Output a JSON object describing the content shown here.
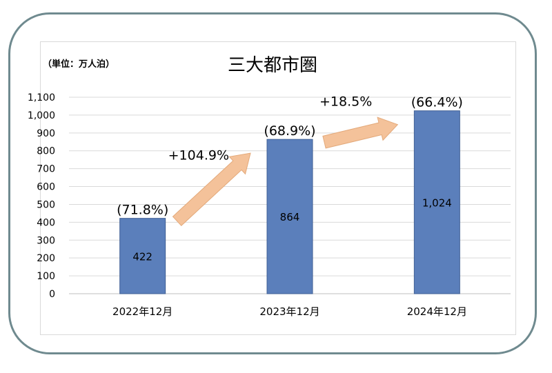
{
  "chart_data": {
    "type": "bar",
    "title": "三大都市圏",
    "unit_label": "（単位：万人泊）",
    "categories": [
      "2022年12月",
      "2023年12月",
      "2024年12月"
    ],
    "values": [
      422,
      864,
      1024
    ],
    "value_labels": [
      "422",
      "864",
      "1,024"
    ],
    "share_labels": [
      "(71.8%)",
      "(68.9%)",
      "(66.4%)"
    ],
    "growth_labels": [
      "+104.9%",
      "+18.5%"
    ],
    "ylim": [
      0,
      1100
    ],
    "yticks": [
      0,
      100,
      200,
      300,
      400,
      500,
      600,
      700,
      800,
      900,
      1000,
      1100
    ],
    "ytick_labels": [
      "0",
      "100",
      "200",
      "300",
      "400",
      "500",
      "600",
      "700",
      "800",
      "900",
      "1,000",
      "1,100"
    ],
    "grid": true,
    "colors": {
      "bar": "#5b7fbb",
      "bar_edge": "#3f5f94",
      "arrow": "#f4c29a",
      "grid": "#d9d9d9",
      "frame": "#6f8a8f"
    }
  }
}
